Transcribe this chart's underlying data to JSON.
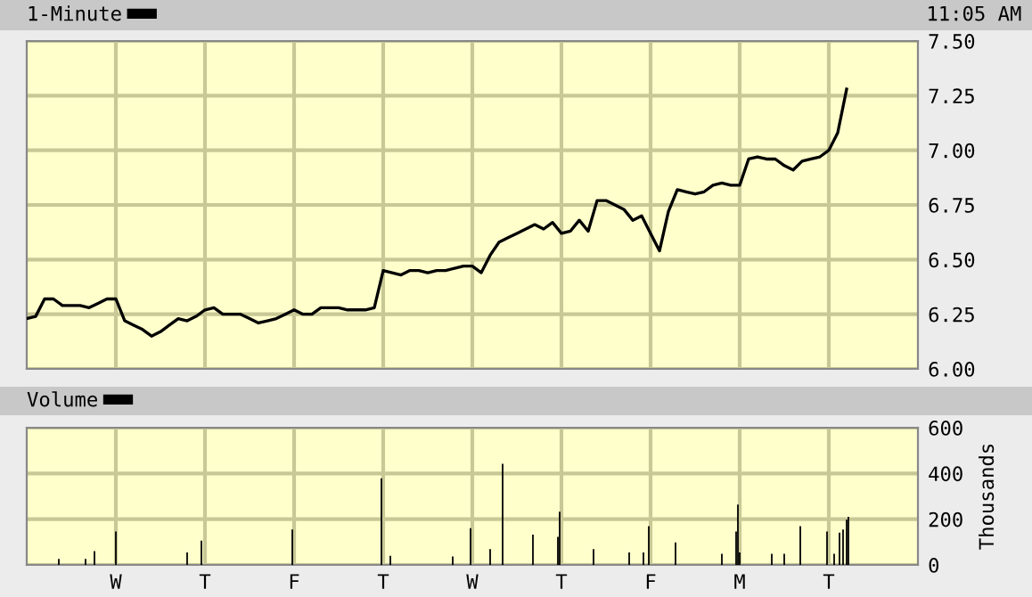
{
  "chart_data": [
    {
      "type": "line",
      "annotations": [
        "11:05 AM"
      ],
      "legend": "top left",
      "grid": true,
      "tick_labels": "y",
      "categories": [
        null,
        null,
        null,
        null,
        null,
        null,
        null,
        null,
        null,
        null,
        null,
        null,
        null,
        null,
        null,
        null,
        null,
        null,
        null,
        null,
        null,
        null,
        null,
        null,
        null,
        null,
        null,
        null,
        null,
        null,
        null,
        null,
        null,
        null,
        null,
        null,
        null,
        null,
        null,
        null,
        null,
        null,
        null,
        null,
        null,
        null,
        null,
        null,
        null,
        null,
        null,
        null,
        null,
        null,
        null,
        null,
        null,
        null,
        null,
        null,
        null,
        null,
        null,
        null,
        null,
        null,
        null,
        null,
        null,
        null,
        null,
        null,
        null,
        null,
        null,
        null,
        null,
        null,
        null,
        null,
        null,
        null,
        null,
        null,
        null,
        null,
        null,
        null,
        null,
        null,
        null,
        null,
        null,
        null,
        null,
        null,
        null,
        null,
        null,
        null,
        null
      ],
      "ylim": [
        6.0,
        7.5
      ],
      "yticks": [
        {
          "value": 6.0,
          "label": "6.00"
        },
        6.25,
        {
          "value": 6.5,
          "label": "6.50"
        },
        6.75,
        {
          "value": 7.0,
          "label": "7.00"
        },
        7.25,
        {
          "value": 7.5,
          "label": "7.50"
        }
      ],
      "series": [
        {
          "name": "1-Minute",
          "color": "#000000",
          "values": [
            6.23,
            6.24,
            6.32,
            6.32,
            6.29,
            6.29,
            6.29,
            6.28,
            6.3,
            6.32,
            6.32,
            6.22,
            6.2,
            6.18,
            6.15,
            6.17,
            6.2,
            6.23,
            6.22,
            6.24,
            6.27,
            6.28,
            6.25,
            6.25,
            6.25,
            6.23,
            6.21,
            6.22,
            6.23,
            6.25,
            6.27,
            6.25,
            6.25,
            6.28,
            6.28,
            6.28,
            6.27,
            6.27,
            6.27,
            6.28,
            6.45,
            6.44,
            6.43,
            6.45,
            6.45,
            6.44,
            6.45,
            6.45,
            6.46,
            6.47,
            6.47,
            6.44,
            6.52,
            6.58,
            6.6,
            6.62,
            6.64,
            6.66,
            6.64,
            6.67,
            6.62,
            6.63,
            6.68,
            6.63,
            6.77,
            6.77,
            6.75,
            6.73,
            6.68,
            6.7,
            6.62,
            6.54,
            6.72,
            6.82,
            6.81,
            6.8,
            6.81,
            6.84,
            6.85,
            6.84,
            6.84,
            6.96,
            6.97,
            6.96,
            6.96,
            6.93,
            6.91,
            6.95,
            6.96,
            6.97,
            7.0,
            7.08,
            7.28,
            null,
            null,
            null,
            null,
            null,
            null,
            null,
            null
          ]
        }
      ]
    },
    {
      "type": "bar",
      "ylabel": "Thousands",
      "legend": "top left",
      "grid": true,
      "categories": [
        null,
        null,
        null,
        null,
        null,
        null,
        null,
        null,
        null,
        null,
        null,
        null,
        null,
        null,
        null,
        null,
        null,
        null,
        null,
        null,
        null,
        null,
        null,
        null,
        null,
        null,
        null,
        null,
        null,
        null,
        null,
        null,
        null,
        null,
        null,
        null,
        null,
        null,
        null,
        null,
        null,
        null,
        null,
        null,
        null,
        null,
        null,
        null,
        null,
        null,
        "W",
        null,
        null,
        null,
        null,
        null,
        null,
        null,
        null,
        null,
        null,
        null,
        null,
        null,
        null,
        null,
        null,
        null,
        null,
        null,
        null,
        null,
        null,
        null,
        null,
        null,
        null,
        null,
        null,
        null,
        null,
        null,
        null,
        null,
        null,
        null,
        null,
        null,
        null,
        null,
        null,
        null,
        null,
        null,
        null,
        null,
        null,
        null,
        null,
        null,
        "T",
        null,
        null,
        null,
        null,
        null,
        null,
        null,
        null,
        null,
        null,
        null,
        null,
        null,
        null,
        null,
        null,
        null,
        null,
        null,
        null,
        null,
        null,
        null,
        null,
        null,
        null,
        null,
        null,
        null,
        null,
        null,
        null,
        null,
        null,
        null,
        null,
        null,
        null,
        null,
        null,
        null,
        null,
        null,
        null,
        null,
        null,
        null,
        null,
        null,
        "F",
        null,
        null,
        null,
        null,
        null,
        null,
        null,
        null,
        null,
        null,
        null,
        null,
        null,
        null,
        null,
        null,
        null,
        null,
        null,
        null,
        null,
        null,
        null,
        null,
        null,
        null,
        null,
        null,
        null,
        null,
        null,
        null,
        null,
        null,
        null,
        null,
        null,
        null,
        null,
        null,
        null,
        null,
        null,
        null,
        null,
        null,
        null,
        null,
        null,
        "T",
        null,
        null,
        null,
        null,
        null,
        null,
        null,
        null,
        null,
        null,
        null,
        null,
        null,
        null,
        null,
        null,
        null,
        null,
        null,
        null,
        null,
        null,
        null,
        null,
        null,
        null,
        null,
        null,
        null,
        null,
        null,
        null,
        null,
        null,
        null,
        null,
        null,
        null,
        null,
        null,
        null,
        null,
        null,
        null,
        null,
        null,
        null,
        null,
        null,
        "W",
        null,
        null,
        null,
        null,
        null,
        null,
        null,
        null,
        null,
        null,
        null,
        null,
        null,
        null,
        null,
        null,
        null,
        null,
        null,
        null,
        null,
        null,
        null,
        null,
        null,
        null,
        null,
        null,
        null,
        null,
        null,
        null,
        null,
        null,
        null,
        null,
        null,
        null,
        null,
        null,
        null,
        null,
        null,
        null,
        null,
        null,
        null,
        null,
        null,
        "T",
        null,
        null,
        null,
        null,
        null,
        null,
        null,
        null,
        null,
        null,
        null,
        null,
        null,
        null,
        null,
        null,
        null,
        null,
        null,
        null,
        null,
        null,
        null,
        null,
        null,
        null,
        null,
        null,
        null,
        null,
        null,
        null,
        null,
        null,
        null,
        null,
        null,
        null,
        null,
        null,
        null,
        null,
        null,
        null,
        null,
        null,
        null,
        null,
        null,
        "F",
        null,
        null,
        null,
        null,
        null,
        null,
        null,
        null,
        null,
        null,
        null,
        null,
        null,
        null,
        null,
        null,
        null,
        null,
        null,
        null,
        null,
        null,
        null,
        null,
        null,
        null,
        null,
        null,
        null,
        null,
        null,
        null,
        null,
        null,
        null,
        null,
        null,
        null,
        null,
        null,
        null,
        null,
        null,
        null,
        null,
        null,
        null,
        null,
        null,
        "M",
        null,
        null,
        null,
        null,
        null,
        null,
        null,
        null,
        null,
        null,
        null,
        null,
        null,
        null,
        null,
        null,
        null,
        null,
        null,
        null,
        null,
        null,
        null,
        null,
        null,
        null,
        null,
        null,
        null,
        null,
        null,
        null,
        null,
        null,
        null,
        null,
        null,
        null,
        null,
        null,
        null,
        null,
        null,
        null,
        null,
        null,
        null,
        null,
        null,
        "T",
        null,
        null,
        null,
        null,
        null,
        null,
        null,
        null,
        null,
        null,
        null,
        null,
        null,
        null,
        null,
        null,
        null,
        null,
        null,
        null,
        null,
        null,
        null,
        null,
        null,
        null,
        null,
        null,
        null,
        null,
        null,
        null,
        null,
        null,
        null,
        null,
        null,
        null,
        null,
        null,
        null,
        null,
        null,
        null,
        null,
        null,
        null,
        null,
        null,
        null
      ],
      "ylim": [
        0,
        600
      ],
      "yticks": [
        0,
        200,
        400,
        600
      ],
      "series": [
        {
          "name": "Volume",
          "color": "#000000",
          "values": [
            null,
            null,
            null,
            null,
            null,
            null,
            null,
            null,
            null,
            null,
            null,
            null,
            null,
            null,
            null,
            null,
            null,
            null,
            26,
            null,
            null,
            null,
            null,
            null,
            null,
            null,
            null,
            null,
            null,
            null,
            null,
            null,
            null,
            26,
            null,
            null,
            null,
            null,
            60,
            null,
            null,
            null,
            null,
            null,
            null,
            null,
            null,
            null,
            null,
            null,
            146,
            null,
            null,
            null,
            null,
            null,
            null,
            null,
            null,
            null,
            null,
            null,
            null,
            null,
            null,
            null,
            null,
            null,
            null,
            null,
            null,
            null,
            null,
            null,
            null,
            null,
            null,
            null,
            null,
            null,
            null,
            null,
            null,
            null,
            null,
            null,
            null,
            null,
            null,
            null,
            55,
            null,
            null,
            null,
            null,
            null,
            null,
            null,
            106,
            null,
            null,
            null,
            null,
            null,
            null,
            null,
            null,
            null,
            null,
            null,
            null,
            null,
            null,
            null,
            null,
            null,
            null,
            null,
            null,
            null,
            null,
            null,
            null,
            null,
            null,
            null,
            null,
            null,
            null,
            null,
            null,
            null,
            null,
            null,
            null,
            null,
            null,
            null,
            null,
            null,
            null,
            null,
            null,
            null,
            null,
            null,
            null,
            null,
            null,
            155,
            null,
            null,
            null,
            null,
            null,
            null,
            null,
            null,
            null,
            null,
            null,
            null,
            null,
            null,
            null,
            null,
            null,
            null,
            null,
            null,
            null,
            null,
            null,
            null,
            null,
            null,
            null,
            null,
            null,
            null,
            null,
            null,
            null,
            null,
            null,
            null,
            null,
            null,
            null,
            null,
            null,
            null,
            null,
            null,
            null,
            null,
            null,
            null,
            null,
            379,
            null,
            null,
            null,
            null,
            40,
            null,
            null,
            null,
            null,
            null,
            null,
            null,
            null,
            null,
            null,
            null,
            null,
            null,
            null,
            null,
            null,
            null,
            null,
            null,
            null,
            null,
            null,
            null,
            null,
            null,
            null,
            null,
            null,
            null,
            null,
            null,
            null,
            null,
            null,
            37,
            null,
            null,
            null,
            null,
            null,
            null,
            null,
            null,
            null,
            161,
            null,
            null,
            null,
            null,
            null,
            null,
            null,
            null,
            null,
            null,
            69,
            null,
            null,
            null,
            null,
            null,
            null,
            442,
            null,
            null,
            null,
            null,
            null,
            null,
            null,
            null,
            null,
            null,
            null,
            null,
            null,
            null,
            null,
            null,
            132,
            null,
            null,
            null,
            null,
            null,
            null,
            null,
            null,
            null,
            null,
            null,
            null,
            null,
            123,
            233,
            null,
            null,
            null,
            null,
            null,
            null,
            null,
            null,
            null,
            null,
            null,
            null,
            null,
            null,
            null,
            null,
            null,
            null,
            69,
            null,
            null,
            null,
            null,
            null,
            null,
            null,
            null,
            null,
            null,
            null,
            null,
            null,
            null,
            null,
            null,
            null,
            null,
            null,
            55,
            null,
            null,
            null,
            null,
            null,
            null,
            null,
            55,
            null,
            null,
            169,
            null,
            null,
            null,
            null,
            null,
            null,
            null,
            null,
            null,
            null,
            null,
            null,
            null,
            null,
            98,
            null,
            null,
            null,
            null,
            null,
            null,
            null,
            null,
            null,
            null,
            null,
            null,
            null,
            null,
            null,
            null,
            null,
            null,
            null,
            null,
            null,
            null,
            null,
            null,
            null,
            49,
            null,
            null,
            null,
            null,
            null,
            null,
            null,
            146,
            264,
            55,
            null,
            null,
            null,
            null,
            null,
            null,
            null,
            null,
            null,
            null,
            null,
            null,
            null,
            null,
            null,
            null,
            null,
            49,
            null,
            null,
            null,
            null,
            null,
            null,
            49,
            null,
            null,
            null,
            null,
            null,
            null,
            null,
            null,
            169,
            null,
            null,
            null,
            null,
            null,
            null,
            null,
            null,
            null,
            null,
            null,
            null,
            null,
            null,
            146,
            null,
            null,
            null,
            49,
            null,
            null,
            141,
            null,
            155,
            null,
            198,
            210,
            null,
            null,
            null,
            null,
            null,
            null,
            null,
            null,
            null,
            null,
            null,
            null,
            null,
            null,
            null,
            null,
            null,
            null,
            null,
            null,
            null,
            null,
            null,
            null,
            null,
            null,
            null,
            null,
            null,
            null,
            null,
            null,
            null,
            null,
            null,
            null,
            null,
            null,
            null
          ]
        }
      ]
    }
  ]
}
